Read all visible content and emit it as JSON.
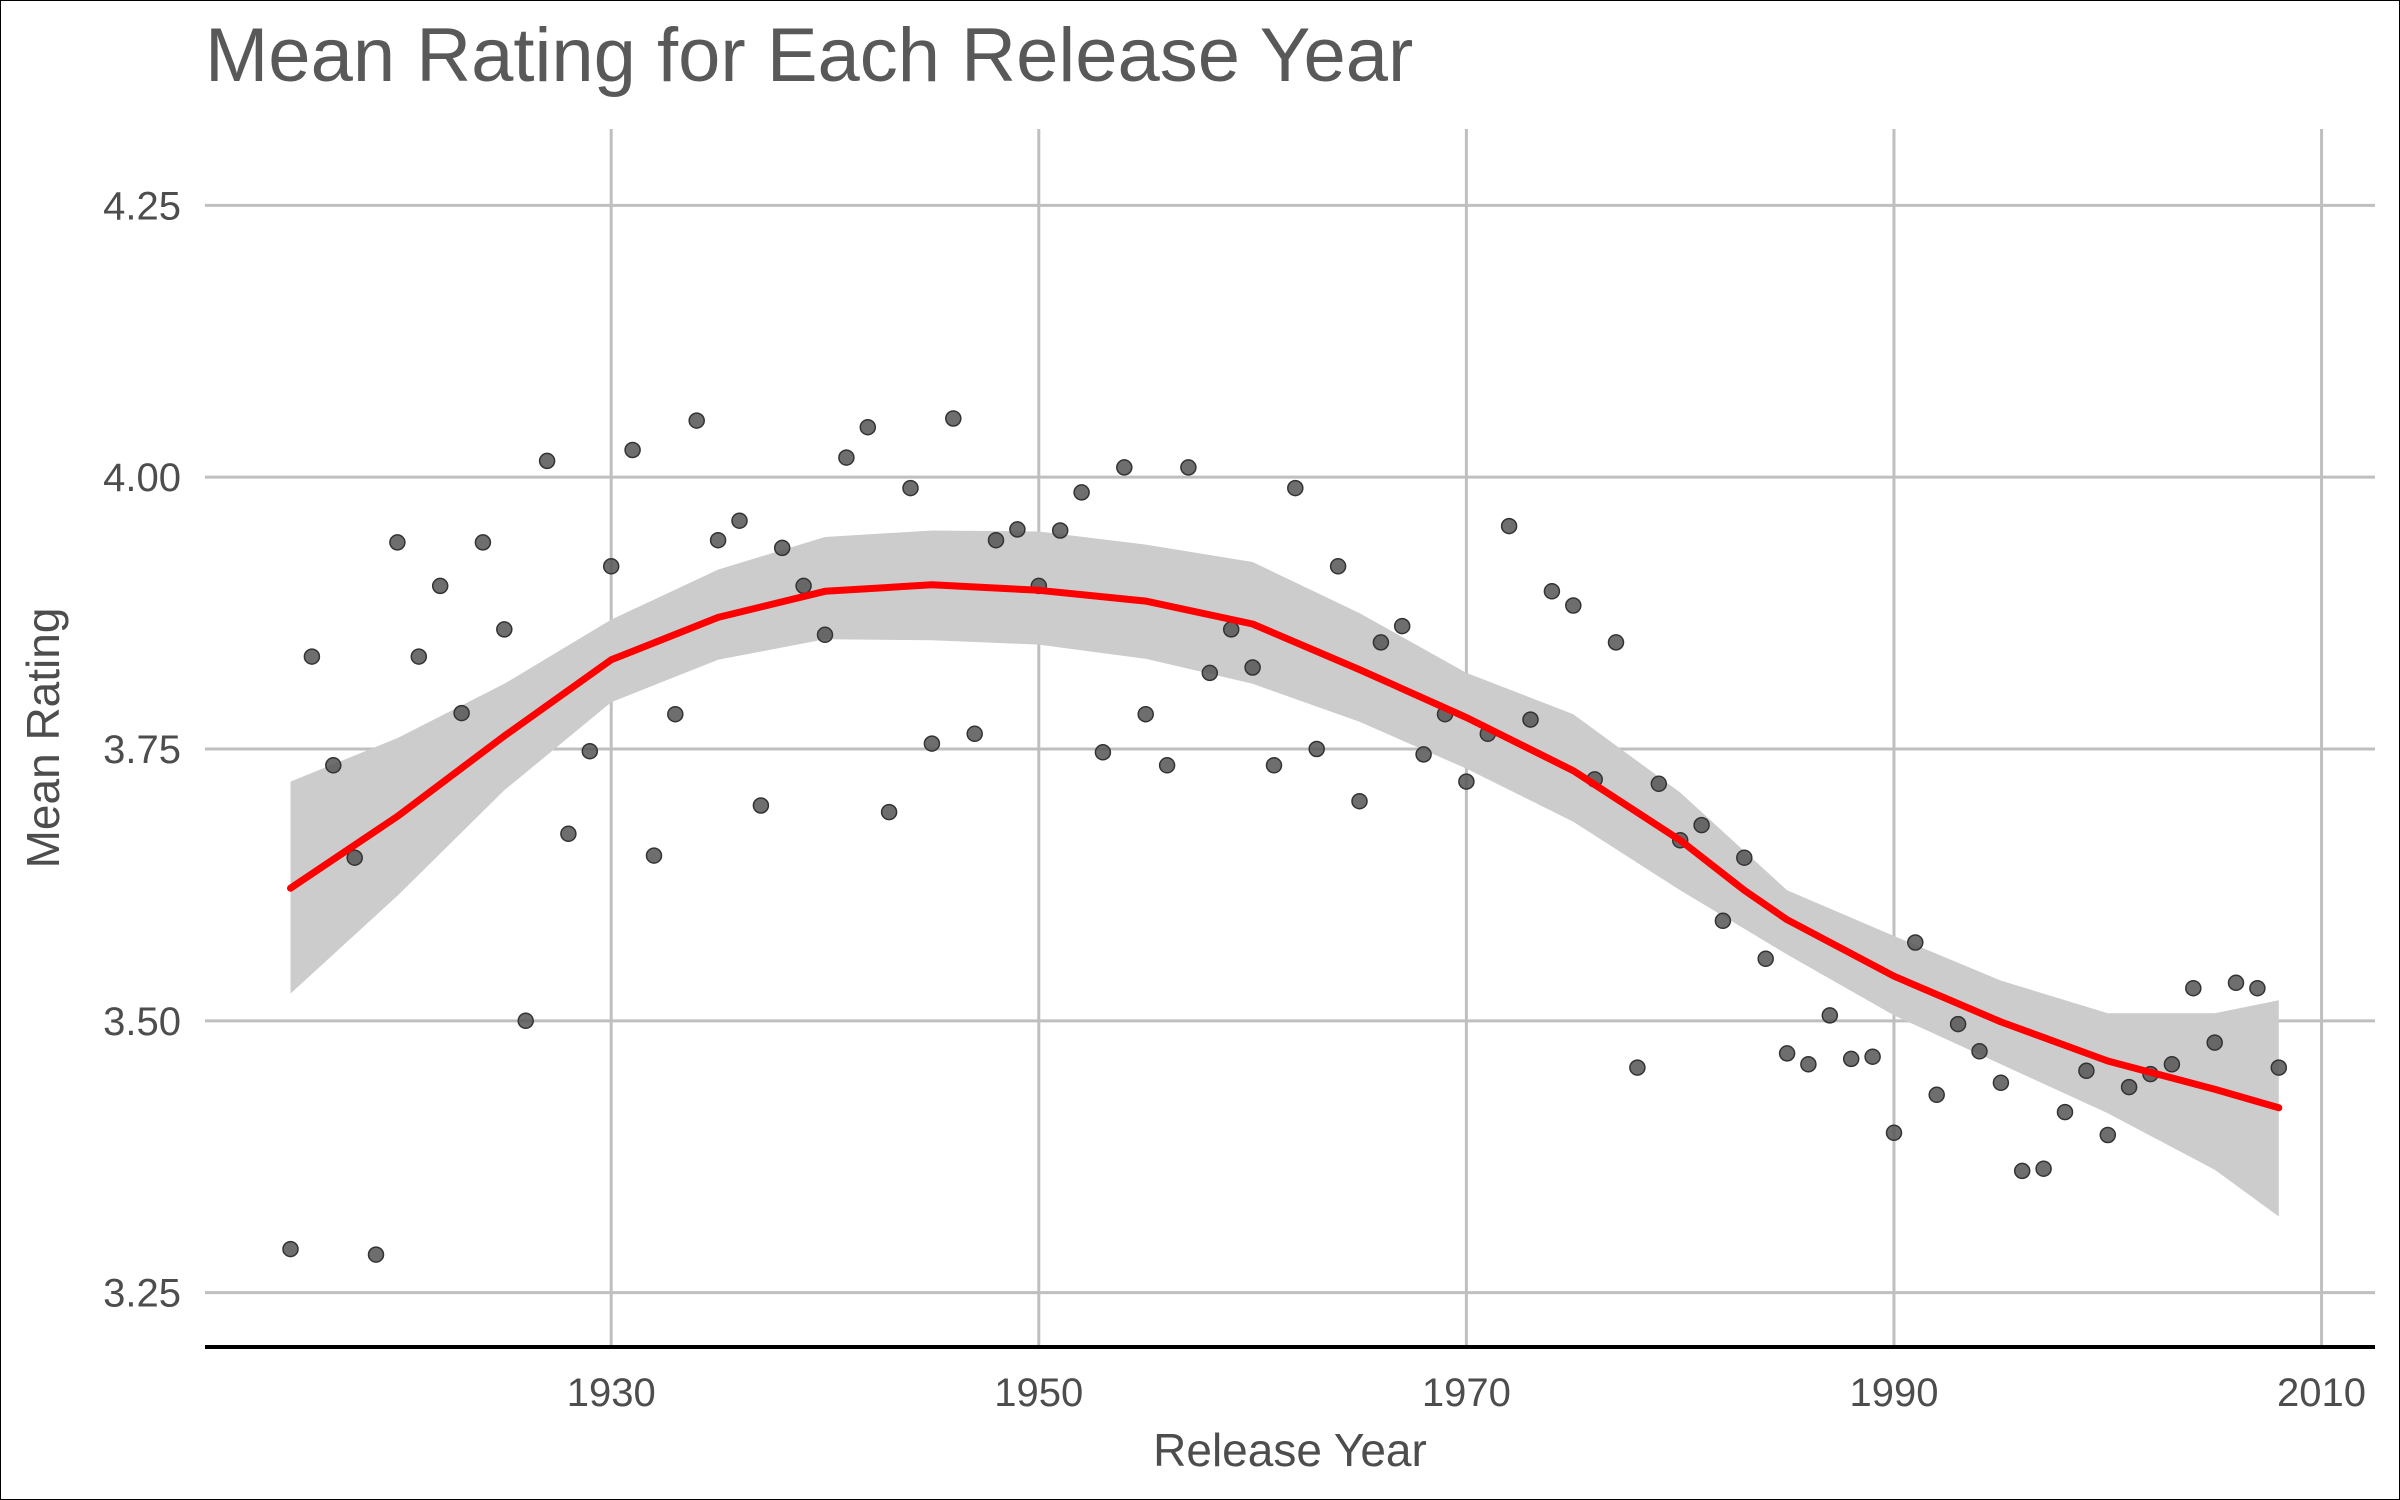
{
  "chart_data": {
    "type": "scatter",
    "title": "Mean Rating for Each Release Year",
    "xlabel": "Release Year",
    "ylabel": "Mean Rating",
    "xlim": [
      1911,
      2012.5
    ],
    "ylim": [
      3.2,
      4.3
    ],
    "x_ticks": [
      1930,
      1950,
      1970,
      1990,
      2010
    ],
    "x_tick_labels": [
      "1930",
      "1950",
      "1970",
      "1990",
      "2010"
    ],
    "y_ticks": [
      3.25,
      3.5,
      3.75,
      4.0,
      4.25
    ],
    "y_tick_labels": [
      "3.25",
      "3.50",
      "3.75",
      "4.00",
      "4.25"
    ],
    "grid": true,
    "colors": {
      "points": "#555555",
      "smooth_line": "#ff0000",
      "confidence_band": "#cccccc",
      "grid": "#bfbfbf",
      "text": "#4d4d4d"
    },
    "points": [
      [
        1915,
        3.29
      ],
      [
        1916,
        3.835
      ],
      [
        1917,
        3.735
      ],
      [
        1918,
        3.65
      ],
      [
        1919,
        3.285
      ],
      [
        1920,
        3.94
      ],
      [
        1921,
        3.835
      ],
      [
        1922,
        3.9
      ],
      [
        1923,
        3.783
      ],
      [
        1924,
        3.94
      ],
      [
        1925,
        3.86
      ],
      [
        1926,
        3.5
      ],
      [
        1927,
        4.015
      ],
      [
        1928,
        3.672
      ],
      [
        1929,
        3.748
      ],
      [
        1930,
        3.918
      ],
      [
        1931,
        4.025
      ],
      [
        1932,
        3.652
      ],
      [
        1933,
        3.782
      ],
      [
        1934,
        4.052
      ],
      [
        1935,
        3.942
      ],
      [
        1936,
        3.96
      ],
      [
        1937,
        3.698
      ],
      [
        1938,
        3.935
      ],
      [
        1939,
        3.9
      ],
      [
        1940,
        3.855
      ],
      [
        1941,
        4.018
      ],
      [
        1942,
        4.046
      ],
      [
        1943,
        3.692
      ],
      [
        1944,
        3.99
      ],
      [
        1945,
        3.755
      ],
      [
        1946,
        4.054
      ],
      [
        1947,
        3.764
      ],
      [
        1948,
        3.942
      ],
      [
        1949,
        3.952
      ],
      [
        1950,
        3.9
      ],
      [
        1951,
        3.951
      ],
      [
        1952,
        3.986
      ],
      [
        1953,
        3.747
      ],
      [
        1954,
        4.009
      ],
      [
        1955,
        3.782
      ],
      [
        1956,
        3.735
      ],
      [
        1957,
        4.009
      ],
      [
        1958,
        3.82
      ],
      [
        1959,
        3.86
      ],
      [
        1960,
        3.825
      ],
      [
        1961,
        3.735
      ],
      [
        1962,
        3.99
      ],
      [
        1963,
        3.75
      ],
      [
        1964,
        3.918
      ],
      [
        1965,
        3.702
      ],
      [
        1966,
        3.848
      ],
      [
        1967,
        3.863
      ],
      [
        1968,
        3.745
      ],
      [
        1969,
        3.782
      ],
      [
        1970,
        3.72
      ],
      [
        1971,
        3.764
      ],
      [
        1972,
        3.955
      ],
      [
        1973,
        3.777
      ],
      [
        1974,
        3.895
      ],
      [
        1975,
        3.882
      ],
      [
        1976,
        3.722
      ],
      [
        1977,
        3.848
      ],
      [
        1978,
        3.457
      ],
      [
        1979,
        3.718
      ],
      [
        1980,
        3.666
      ],
      [
        1981,
        3.68
      ],
      [
        1982,
        3.592
      ],
      [
        1983,
        3.65
      ],
      [
        1984,
        3.557
      ],
      [
        1985,
        3.47
      ],
      [
        1986,
        3.46
      ],
      [
        1987,
        3.505
      ],
      [
        1988,
        3.465
      ],
      [
        1989,
        3.467
      ],
      [
        1990,
        3.397
      ],
      [
        1991,
        3.572
      ],
      [
        1992,
        3.432
      ],
      [
        1993,
        3.497
      ],
      [
        1994,
        3.472
      ],
      [
        1995,
        3.443
      ],
      [
        1996,
        3.362
      ],
      [
        1997,
        3.364
      ],
      [
        1998,
        3.416
      ],
      [
        1999,
        3.454
      ],
      [
        2000,
        3.395
      ],
      [
        2001,
        3.439
      ],
      [
        2002,
        3.451
      ],
      [
        2003,
        3.46
      ],
      [
        2004,
        3.53
      ],
      [
        2005,
        3.48
      ],
      [
        2006,
        3.535
      ],
      [
        2007,
        3.53
      ],
      [
        2008,
        3.457
      ]
    ],
    "smooth_line": [
      [
        1915,
        3.622
      ],
      [
        1920,
        3.688
      ],
      [
        1925,
        3.762
      ],
      [
        1930,
        3.832
      ],
      [
        1935,
        3.871
      ],
      [
        1940,
        3.895
      ],
      [
        1945,
        3.901
      ],
      [
        1950,
        3.896
      ],
      [
        1955,
        3.886
      ],
      [
        1960,
        3.865
      ],
      [
        1965,
        3.823
      ],
      [
        1970,
        3.779
      ],
      [
        1975,
        3.73
      ],
      [
        1980,
        3.666
      ],
      [
        1983,
        3.62
      ],
      [
        1985,
        3.593
      ],
      [
        1990,
        3.541
      ],
      [
        1995,
        3.499
      ],
      [
        2000,
        3.463
      ],
      [
        2005,
        3.437
      ],
      [
        2008,
        3.42
      ]
    ],
    "confidence_band": {
      "x": [
        1915,
        1920,
        1925,
        1930,
        1935,
        1940,
        1945,
        1950,
        1955,
        1960,
        1965,
        1970,
        1975,
        1980,
        1985,
        1990,
        1995,
        2000,
        2005,
        2008
      ],
      "upper": [
        3.72,
        3.76,
        3.81,
        3.869,
        3.915,
        3.945,
        3.951,
        3.95,
        3.938,
        3.922,
        3.875,
        3.82,
        3.782,
        3.71,
        3.62,
        3.578,
        3.537,
        3.507,
        3.507,
        3.519
      ],
      "lower": [
        3.525,
        3.615,
        3.712,
        3.793,
        3.832,
        3.851,
        3.85,
        3.846,
        3.833,
        3.81,
        3.775,
        3.732,
        3.683,
        3.62,
        3.561,
        3.505,
        3.46,
        3.415,
        3.363,
        3.32
      ]
    }
  }
}
